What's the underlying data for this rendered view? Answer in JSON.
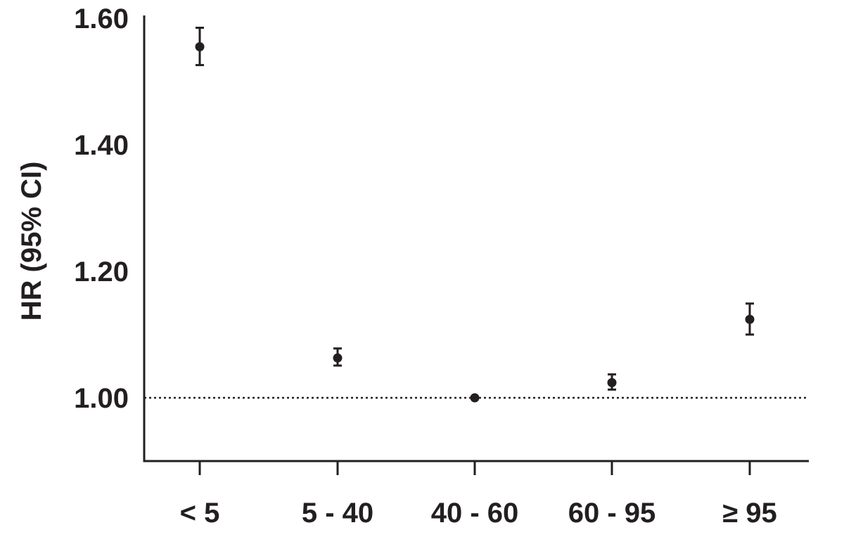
{
  "chart_data": {
    "type": "scatter",
    "title": "",
    "xlabel": "",
    "ylabel": "HR (95% CI)",
    "categories": [
      "< 5",
      "5 - 40",
      "40 - 60",
      "60 - 95",
      "≥ 95"
    ],
    "y_ticks": [
      "1.00",
      "1.20",
      "1.40",
      "1.60"
    ],
    "ylim": [
      0.9,
      1.6
    ],
    "reference_line": 1.0,
    "grid": false,
    "legend": "none",
    "series": [
      {
        "values": [
          1.555,
          1.063,
          1.0,
          1.024,
          1.124
        ],
        "ci_lower": [
          1.526,
          1.051,
          1.0,
          1.013,
          1.1
        ],
        "ci_upper": [
          1.585,
          1.078,
          1.0,
          1.037,
          1.149
        ]
      }
    ],
    "colors": {
      "ink": "#231f20"
    }
  }
}
